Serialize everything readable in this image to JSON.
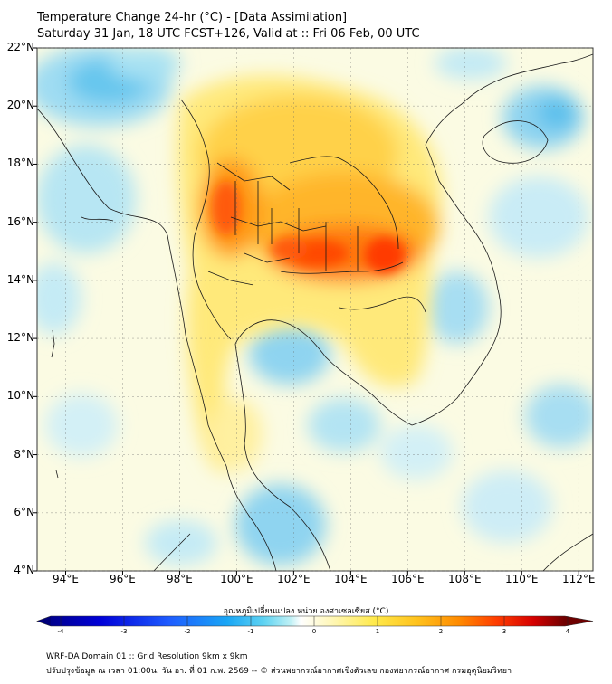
{
  "header": {
    "title_line1": "Temperature Change 24-hr (°C) - [Data Assimilation]",
    "title_line2": "Saturday 31 Jan, 18 UTC FCST+126, Valid at :: Fri 06 Feb, 00 UTC"
  },
  "map": {
    "lat_labels": [
      "22°N",
      "20°N",
      "18°N",
      "16°N",
      "14°N",
      "12°N",
      "10°N",
      "8°N",
      "6°N",
      "4°N"
    ],
    "lon_labels": [
      "94°E",
      "96°E",
      "98°E",
      "100°E",
      "102°E",
      "104°E",
      "106°E",
      "108°E",
      "110°E",
      "112°E"
    ],
    "lat_range": [
      4,
      22
    ],
    "lon_range": [
      93,
      112.5
    ],
    "warm_core_centre": {
      "lon": 103.5,
      "lat": 15.0,
      "value": 3.5
    },
    "cool_regions": [
      "Gulf of Thailand",
      "Andaman Sea",
      "South China Sea",
      "northwest corner"
    ]
  },
  "colorbar": {
    "title": "อุณหภูมิเปลี่ยนแปลง หน่วย องศาเซลเซียส (°C)",
    "min": -4,
    "max": 4,
    "tick_labels": [
      "-4",
      "-3",
      "-2",
      "-1",
      "0",
      "1",
      "2",
      "3",
      "4"
    ],
    "colors": [
      "#00007a",
      "#0000d8",
      "#1e5cff",
      "#19a6f5",
      "#5fd3f2",
      "#bff0f5",
      "#ffffff",
      "#fff7b5",
      "#ffe94a",
      "#ffc21d",
      "#ff8a00",
      "#ff3d00",
      "#d60000",
      "#6e0000"
    ]
  },
  "footer": {
    "line1": "WRF-DA Domain 01 :: Grid Resolution 9km x 9km",
    "line2": "ปรับปรุงข้อมูล ณ เวลา 01:00น. วัน อา. ที่ 01 ก.พ. 2569 -- © ส่วนพยากรณ์อากาศเชิงตัวเลข กองพยากรณ์อากาศ กรมอุตุนิยมวิทยา"
  }
}
